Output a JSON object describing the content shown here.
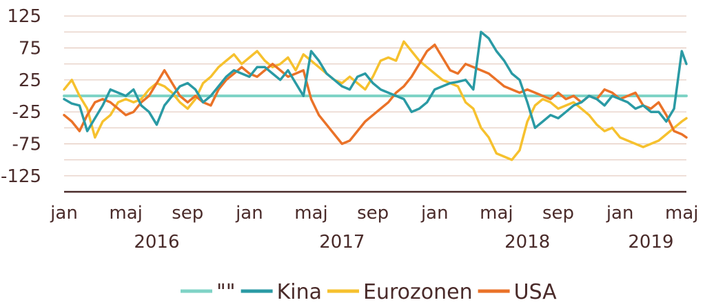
{
  "chart_data": {
    "type": "line",
    "title": "",
    "xlabel": "",
    "ylabel": "",
    "ylim": [
      -150,
      150
    ],
    "y_ticks": [
      125,
      75,
      25,
      -25,
      -75,
      -125
    ],
    "grid": true,
    "legend_position": "bottom",
    "x_tick_labels": [
      {
        "label": "jan",
        "x": 0
      },
      {
        "label": "maj",
        "x": 4
      },
      {
        "label": "sep",
        "x": 8
      },
      {
        "label": "jan",
        "x": 12
      },
      {
        "label": "maj",
        "x": 16
      },
      {
        "label": "sep",
        "x": 20
      },
      {
        "label": "jan",
        "x": 24
      },
      {
        "label": "maj",
        "x": 28
      },
      {
        "label": "sep",
        "x": 32
      },
      {
        "label": "jan",
        "x": 36
      },
      {
        "label": "maj",
        "x": 40
      }
    ],
    "year_labels": [
      {
        "label": "2016",
        "x": 6
      },
      {
        "label": "2017",
        "x": 18
      },
      {
        "label": "2018",
        "x": 30
      },
      {
        "label": "2019",
        "x": 38
      }
    ],
    "series": [
      {
        "name": "\"\"",
        "color": "#7fd3c6",
        "x": [
          0,
          40.3
        ],
        "values": [
          0,
          0
        ]
      },
      {
        "name": "Kina",
        "color": "#2a9aa4",
        "x": [
          0,
          0.5,
          1,
          1.5,
          2,
          2.5,
          3,
          3.5,
          4,
          4.5,
          5,
          5.5,
          6,
          6.5,
          7,
          7.5,
          8,
          8.5,
          9,
          9.5,
          10,
          10.5,
          11,
          11.5,
          12,
          12.5,
          13,
          13.5,
          14,
          14.5,
          15,
          15.5,
          16,
          16.5,
          17,
          17.5,
          18,
          18.5,
          19,
          19.5,
          20,
          20.5,
          21,
          21.5,
          22,
          22.5,
          23,
          23.5,
          24,
          24.5,
          25,
          25.5,
          26,
          26.5,
          27,
          27.5,
          28,
          28.5,
          29,
          29.5,
          30,
          30.5,
          31,
          31.5,
          32,
          32.5,
          33,
          33.5,
          34,
          34.5,
          35,
          35.5,
          36,
          36.5,
          37,
          37.5,
          38,
          38.5,
          39,
          39.5,
          40,
          40.3
        ],
        "values": [
          -5,
          -12,
          -15,
          -55,
          -35,
          -15,
          10,
          5,
          0,
          10,
          -15,
          -25,
          -45,
          -15,
          0,
          15,
          20,
          10,
          -10,
          0,
          15,
          30,
          40,
          35,
          30,
          45,
          45,
          35,
          25,
          40,
          20,
          0,
          70,
          55,
          35,
          25,
          15,
          10,
          30,
          35,
          20,
          10,
          5,
          0,
          -5,
          -25,
          -20,
          -10,
          10,
          15,
          20,
          22,
          25,
          10,
          100,
          90,
          70,
          55,
          35,
          25,
          -10,
          -50,
          -40,
          -30,
          -35,
          -25,
          -15,
          -10,
          0,
          -5,
          -15,
          0,
          -5,
          -10,
          -20,
          -15,
          -25,
          -25,
          -40,
          -20,
          70,
          50
        ]
      },
      {
        "name": "Eurozonen",
        "color": "#f6c12e",
        "x": [
          0,
          0.5,
          1,
          1.5,
          2,
          2.5,
          3,
          3.5,
          4,
          4.5,
          5,
          5.5,
          6,
          6.5,
          7,
          7.5,
          8,
          8.5,
          9,
          9.5,
          10,
          10.5,
          11,
          11.5,
          12,
          12.5,
          13,
          13.5,
          14,
          14.5,
          15,
          15.5,
          16,
          16.5,
          17,
          17.5,
          18,
          18.5,
          19,
          19.5,
          20,
          20.5,
          21,
          21.5,
          22,
          22.5,
          23,
          23.5,
          24,
          24.5,
          25,
          25.5,
          26,
          26.5,
          27,
          27.5,
          28,
          28.5,
          29,
          29.5,
          30,
          30.5,
          31,
          31.5,
          32,
          32.5,
          33,
          33.5,
          34,
          34.5,
          35,
          35.5,
          36,
          36.5,
          37,
          37.5,
          38,
          38.5,
          39,
          39.5,
          40,
          40.3
        ],
        "values": [
          10,
          25,
          0,
          -20,
          -65,
          -40,
          -30,
          -10,
          -5,
          -10,
          -5,
          10,
          20,
          15,
          5,
          -10,
          -20,
          -5,
          20,
          30,
          45,
          55,
          65,
          50,
          60,
          70,
          55,
          45,
          50,
          60,
          40,
          65,
          55,
          45,
          35,
          25,
          20,
          30,
          20,
          10,
          30,
          55,
          60,
          55,
          85,
          70,
          55,
          45,
          35,
          25,
          20,
          15,
          -10,
          -20,
          -50,
          -65,
          -90,
          -95,
          -100,
          -85,
          -40,
          -15,
          -5,
          -10,
          -20,
          -15,
          -10,
          -20,
          -30,
          -45,
          -55,
          -50,
          -65,
          -70,
          -75,
          -80,
          -75,
          -70,
          -60,
          -50,
          -40,
          -35
        ]
      },
      {
        "name": "USA",
        "color": "#ea7228",
        "x": [
          0,
          0.5,
          1,
          1.5,
          2,
          2.5,
          3,
          3.5,
          4,
          4.5,
          5,
          5.5,
          6,
          6.5,
          7,
          7.5,
          8,
          8.5,
          9,
          9.5,
          10,
          10.5,
          11,
          11.5,
          12,
          12.5,
          13,
          13.5,
          14,
          14.5,
          15,
          15.5,
          16,
          16.5,
          17,
          17.5,
          18,
          18.5,
          19,
          19.5,
          20,
          20.5,
          21,
          21.5,
          22,
          22.5,
          23,
          23.5,
          24,
          24.5,
          25,
          25.5,
          26,
          26.5,
          27,
          27.5,
          28,
          28.5,
          29,
          29.5,
          30,
          30.5,
          31,
          31.5,
          32,
          32.5,
          33,
          33.5,
          34,
          34.5,
          35,
          35.5,
          36,
          36.5,
          37,
          37.5,
          38,
          38.5,
          39,
          39.5,
          40,
          40.3
        ],
        "values": [
          -30,
          -40,
          -55,
          -30,
          -10,
          -5,
          -10,
          -20,
          -30,
          -25,
          -10,
          0,
          20,
          40,
          20,
          0,
          -10,
          0,
          -10,
          -15,
          10,
          25,
          35,
          45,
          35,
          30,
          40,
          50,
          40,
          30,
          35,
          40,
          -5,
          -30,
          -45,
          -60,
          -75,
          -70,
          -55,
          -40,
          -30,
          -20,
          -10,
          5,
          15,
          30,
          50,
          70,
          80,
          60,
          40,
          35,
          50,
          45,
          40,
          35,
          25,
          15,
          10,
          5,
          10,
          5,
          0,
          -5,
          5,
          -5,
          0,
          -10,
          0,
          -5,
          10,
          5,
          -5,
          0,
          5,
          -15,
          -20,
          -10,
          -30,
          -55,
          -60,
          -65
        ]
      }
    ]
  }
}
